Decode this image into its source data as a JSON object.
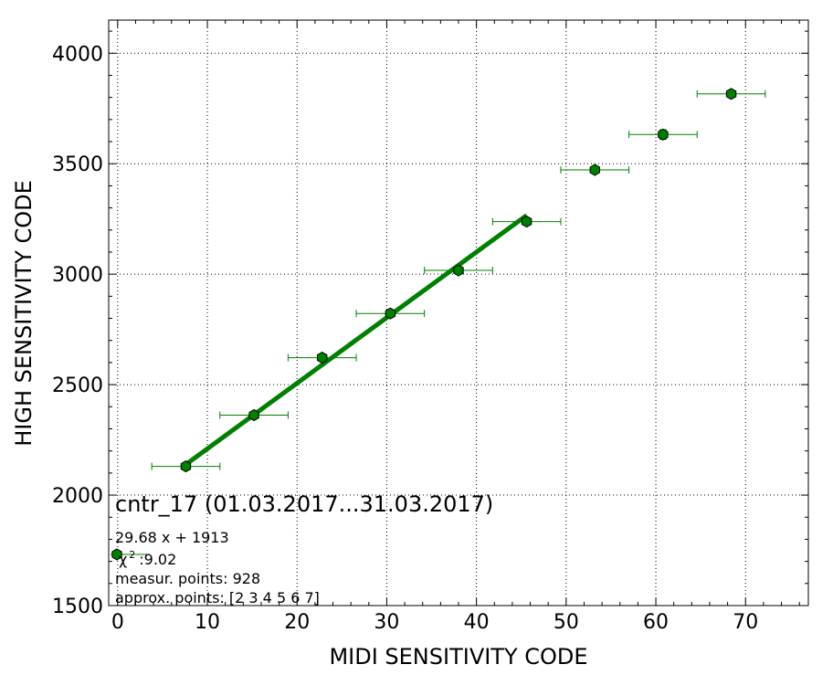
{
  "chart_data": {
    "type": "scatter",
    "title": "cntr_17 (01.03.2017...31.03.2017)",
    "xlabel": "MIDI SENSITIVITY CODE",
    "ylabel": "HIGH SENSITIVITY CODE",
    "xlim": [
      -1,
      77
    ],
    "ylim": [
      1500,
      4150
    ],
    "x_ticks": [
      0,
      10,
      20,
      30,
      40,
      50,
      60,
      70
    ],
    "y_ticks": [
      1500,
      2000,
      2500,
      3000,
      3500,
      4000
    ],
    "grid": true,
    "colors": {
      "marker": "#008000",
      "marker_edge": "#000000",
      "errorbar": "#008000",
      "fit_line": "#008000"
    },
    "series": [
      {
        "marker": "hexagon",
        "points": [
          {
            "x": 7.6,
            "y": 2130,
            "xerr": 3.8,
            "yerr": 8
          },
          {
            "x": 15.2,
            "y": 2362,
            "xerr": 3.8,
            "yerr": 8
          },
          {
            "x": 22.8,
            "y": 2622,
            "xerr": 3.8,
            "yerr": 10
          },
          {
            "x": 30.4,
            "y": 2822,
            "xerr": 3.8,
            "yerr": 10
          },
          {
            "x": 38.0,
            "y": 3017,
            "xerr": 3.8,
            "yerr": 10
          },
          {
            "x": 45.6,
            "y": 3238,
            "xerr": 3.8,
            "yerr": 12
          },
          {
            "x": 53.2,
            "y": 3472,
            "xerr": 3.8,
            "yerr": 12
          },
          {
            "x": 60.8,
            "y": 3632,
            "xerr": 3.8,
            "yerr": 22
          },
          {
            "x": 68.4,
            "y": 3816,
            "xerr": 3.8,
            "yerr": 12
          }
        ]
      }
    ],
    "fit": {
      "slope": 29.68,
      "intercept": 1913,
      "x_range": [
        7.6,
        45.6
      ]
    },
    "annotations": {
      "equation": "29.68 x + 1913",
      "chi_symbol": "χ",
      "chi_sup": "2",
      "chi_value": ":9.02",
      "measur": "measur. points: 928",
      "approx": "approx. points: [2 3 4 5 6 7]"
    }
  }
}
